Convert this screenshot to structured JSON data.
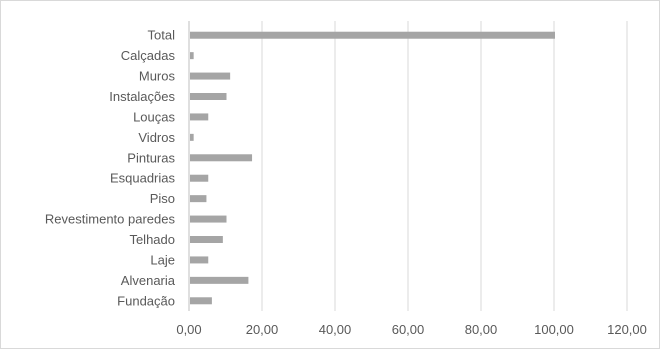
{
  "chart_data": {
    "type": "bar",
    "orientation": "horizontal",
    "categories": [
      "Total",
      "Calçadas",
      "Muros",
      "Instalações",
      "Louças",
      "Vidros",
      "Pinturas",
      "Esquadrias",
      "Piso",
      "Revestimento paredes",
      "Telhado",
      "Laje",
      "Alvenaria",
      "Fundação"
    ],
    "values": [
      100,
      1,
      11,
      10,
      5,
      1,
      17,
      5,
      4.5,
      10,
      9,
      5,
      16,
      6
    ],
    "xlim": [
      0,
      120
    ],
    "xticks": [
      0,
      20,
      40,
      60,
      80,
      100,
      120
    ],
    "xtick_labels": [
      "0,00",
      "20,00",
      "40,00",
      "60,00",
      "80,00",
      "100,00",
      "120,00"
    ],
    "title": "",
    "xlabel": "",
    "ylabel": "",
    "grid": true,
    "bar_color": "#a5a5a5",
    "grid_color": "#d9d9d9",
    "label_color": "#595959"
  }
}
